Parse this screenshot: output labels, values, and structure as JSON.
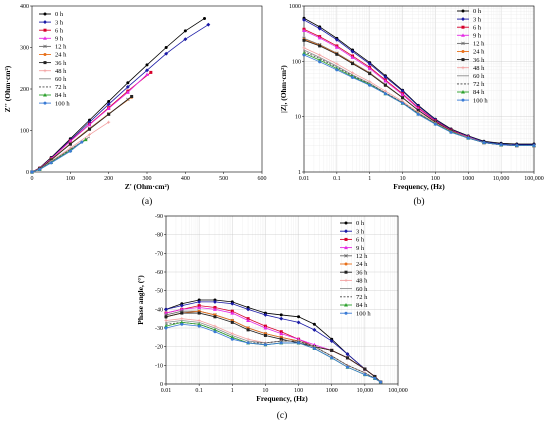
{
  "legend_labels": [
    "0 h",
    "3 h",
    "6 h",
    "9 h",
    "12 h",
    "24 h",
    "36 h",
    "48 h",
    "60 h",
    "72 h",
    "84 h",
    "100 h"
  ],
  "series_colors": [
    "#000000",
    "#1a1aa6",
    "#d6002a",
    "#e52ae5",
    "#6b6b6b",
    "#e8701a",
    "#222222",
    "#f2a0a0",
    "#8c8c8c",
    "#444444",
    "#2aa02a",
    "#3a7bd5"
  ],
  "chart_data": [
    {
      "type": "scatter",
      "panel_label": "(a)",
      "xlabel": "Z' (Ohm·cm²)",
      "ylabel": "Z'' (Ohm·cm²)",
      "xlim": [
        0,
        600
      ],
      "ylim": [
        0,
        400
      ],
      "xticks": [
        "0",
        "100",
        "200",
        "300",
        "400",
        "500",
        "600"
      ],
      "yticks": [
        "0",
        "100",
        "200",
        "300",
        "400"
      ],
      "series": [
        {
          "name": "0 h",
          "x": [
            0,
            20,
            50,
            100,
            150,
            200,
            250,
            300,
            350,
            400,
            450
          ],
          "y": [
            0,
            10,
            35,
            80,
            125,
            170,
            215,
            258,
            300,
            340,
            370
          ]
        },
        {
          "name": "3 h",
          "x": [
            0,
            20,
            50,
            100,
            150,
            200,
            250,
            300,
            350,
            400,
            460
          ],
          "y": [
            0,
            9,
            33,
            77,
            120,
            163,
            205,
            245,
            285,
            320,
            355
          ]
        },
        {
          "name": "6 h",
          "x": [
            0,
            20,
            50,
            100,
            150,
            200,
            250,
            310
          ],
          "y": [
            0,
            9,
            32,
            75,
            115,
            155,
            195,
            240
          ]
        },
        {
          "name": "9 h",
          "x": [
            0,
            20,
            50,
            100,
            150,
            200,
            250,
            300
          ],
          "y": [
            0,
            9,
            32,
            74,
            114,
            153,
            192,
            235
          ]
        },
        {
          "name": "12 h",
          "x": [
            0,
            20,
            50,
            100,
            150,
            200,
            250
          ],
          "y": [
            0,
            8,
            30,
            68,
            105,
            140,
            175
          ]
        },
        {
          "name": "24 h",
          "x": [
            0,
            20,
            50,
            100,
            150,
            200,
            260
          ],
          "y": [
            0,
            8,
            30,
            68,
            104,
            140,
            180
          ]
        },
        {
          "name": "36 h",
          "x": [
            0,
            20,
            50,
            100,
            150,
            200,
            260
          ],
          "y": [
            0,
            8,
            29,
            67,
            103,
            139,
            182
          ]
        },
        {
          "name": "48 h",
          "x": [
            0,
            20,
            50,
            100,
            150,
            200
          ],
          "y": [
            0,
            7,
            26,
            58,
            90,
            120
          ]
        },
        {
          "name": "60 h",
          "x": [
            0,
            20,
            50,
            100,
            150
          ],
          "y": [
            0,
            7,
            25,
            55,
            85
          ]
        },
        {
          "name": "72 h",
          "x": [
            0,
            20,
            50,
            100,
            150
          ],
          "y": [
            0,
            7,
            24,
            54,
            83
          ]
        },
        {
          "name": "84 h",
          "x": [
            0,
            20,
            50,
            100,
            140
          ],
          "y": [
            0,
            6,
            23,
            52,
            78
          ]
        },
        {
          "name": "100 h",
          "x": [
            0,
            20,
            50,
            100,
            130
          ],
          "y": [
            0,
            6,
            22,
            50,
            72
          ]
        }
      ]
    },
    {
      "type": "line",
      "panel_label": "(b)",
      "xlabel": "Frequency, (Hz)",
      "ylabel": "|Z|, (Ohm·cm²)",
      "xscale": "log",
      "yscale": "log",
      "xlim": [
        0.01,
        100000
      ],
      "ylim": [
        1,
        1000
      ],
      "xticks": [
        "0.01",
        "0.1",
        "1",
        "10",
        "100",
        "1000",
        "10,000",
        "100,000"
      ],
      "yticks": [
        "1",
        "10",
        "100",
        "1000"
      ],
      "x": [
        0.01,
        0.03,
        0.1,
        0.3,
        1,
        3,
        10,
        30,
        100,
        300,
        1000,
        3000,
        10000,
        30000,
        100000
      ],
      "series": [
        {
          "name": "0 h",
          "values": [
            600,
            420,
            260,
            160,
            95,
            55,
            30,
            16,
            9,
            6,
            4.5,
            3.6,
            3.3,
            3.2,
            3.2
          ]
        },
        {
          "name": "3 h",
          "values": [
            560,
            390,
            245,
            150,
            90,
            52,
            29,
            15.5,
            8.8,
            5.8,
            4.4,
            3.5,
            3.2,
            3.1,
            3.1
          ]
        },
        {
          "name": "6 h",
          "values": [
            380,
            280,
            190,
            125,
            78,
            46,
            26,
            14.5,
            8.4,
            5.7,
            4.3,
            3.4,
            3.1,
            3.0,
            3.0
          ]
        },
        {
          "name": "9 h",
          "values": [
            360,
            265,
            180,
            118,
            74,
            44,
            25,
            14,
            8.2,
            5.6,
            4.3,
            3.4,
            3.1,
            3.0,
            3.0
          ]
        },
        {
          "name": "12 h",
          "values": [
            260,
            200,
            140,
            95,
            62,
            38,
            22,
            13,
            8,
            5.5,
            4.2,
            3.4,
            3.1,
            3.0,
            3.0
          ]
        },
        {
          "name": "24 h",
          "values": [
            250,
            195,
            137,
            93,
            61,
            37,
            22,
            13,
            8,
            5.5,
            4.2,
            3.4,
            3.1,
            3.0,
            3.0
          ]
        },
        {
          "name": "36 h",
          "values": [
            240,
            190,
            134,
            91,
            60,
            37,
            22,
            13,
            8,
            5.5,
            4.2,
            3.4,
            3.1,
            3.0,
            3.0
          ]
        },
        {
          "name": "48 h",
          "values": [
            175,
            130,
            90,
            62,
            43,
            29,
            19,
            12,
            7.7,
            5.4,
            4.2,
            3.4,
            3.1,
            3.0,
            3.0
          ]
        },
        {
          "name": "60 h",
          "values": [
            160,
            118,
            82,
            57,
            40,
            27,
            18,
            11.5,
            7.5,
            5.3,
            4.1,
            3.4,
            3.1,
            3.0,
            3.0
          ]
        },
        {
          "name": "72 h",
          "values": [
            150,
            112,
            78,
            55,
            39,
            27,
            18,
            11.5,
            7.5,
            5.3,
            4.1,
            3.4,
            3.1,
            3.0,
            3.0
          ]
        },
        {
          "name": "84 h",
          "values": [
            140,
            105,
            74,
            53,
            38,
            26,
            17.5,
            11.2,
            7.4,
            5.3,
            4.1,
            3.4,
            3.1,
            3.0,
            3.0
          ]
        },
        {
          "name": "100 h",
          "values": [
            130,
            98,
            70,
            51,
            37,
            26,
            17.5,
            11,
            7.3,
            5.2,
            4.1,
            3.4,
            3.1,
            3.0,
            3.0
          ]
        }
      ]
    },
    {
      "type": "line",
      "panel_label": "(c)",
      "xlabel": "Frequency, (Hz)",
      "ylabel": "Phase angle, (°)",
      "xscale": "log",
      "xlim": [
        0.01,
        100000
      ],
      "ylim": [
        0,
        -90
      ],
      "xticks": [
        "0.01",
        "0.1",
        "1",
        "10",
        "100",
        "1000",
        "10,000",
        "100,000"
      ],
      "yticks": [
        "0",
        "-10",
        "-20",
        "-30",
        "-40",
        "-50",
        "-60",
        "-70",
        "-80",
        "-90"
      ],
      "x": [
        0.01,
        0.03,
        0.1,
        0.3,
        1,
        3,
        10,
        30,
        100,
        300,
        1000,
        3000,
        10000,
        20000,
        30000
      ],
      "series": [
        {
          "name": "0 h",
          "values": [
            -40,
            -43,
            -45,
            -45,
            -44,
            -41,
            -38,
            -37,
            -36,
            -32,
            -24,
            -16,
            -8,
            -4,
            -1
          ]
        },
        {
          "name": "3 h",
          "values": [
            -40,
            -42,
            -44,
            -44,
            -43,
            -40,
            -37,
            -35,
            -33,
            -29,
            -23,
            -16,
            -8,
            -4,
            -1
          ]
        },
        {
          "name": "6 h",
          "values": [
            -38,
            -40,
            -42,
            -41,
            -39,
            -35,
            -31,
            -28,
            -24,
            -20,
            -18,
            -14,
            -8,
            -4,
            -1
          ]
        },
        {
          "name": "9 h",
          "values": [
            -38,
            -40,
            -41,
            -40,
            -38,
            -34,
            -30,
            -27,
            -24,
            -21,
            -18,
            -14,
            -8,
            -4,
            -1
          ]
        },
        {
          "name": "12 h",
          "values": [
            -37,
            -39,
            -39,
            -37,
            -34,
            -30,
            -27,
            -25,
            -23,
            -20,
            -18,
            -14,
            -8,
            -4,
            -1
          ]
        },
        {
          "name": "24 h",
          "values": [
            -36,
            -38,
            -39,
            -37,
            -34,
            -30,
            -27,
            -25,
            -23,
            -20,
            -18,
            -14,
            -8,
            -4,
            -1
          ]
        },
        {
          "name": "36 h",
          "values": [
            -36,
            -38,
            -38,
            -36,
            -33,
            -29,
            -26,
            -24,
            -22,
            -20,
            -18,
            -14,
            -8,
            -4,
            -1
          ]
        },
        {
          "name": "48 h",
          "values": [
            -34,
            -35,
            -34,
            -31,
            -27,
            -24,
            -22,
            -23,
            -23,
            -20,
            -15,
            -10,
            -6,
            -3,
            -1
          ]
        },
        {
          "name": "60 h",
          "values": [
            -33,
            -34,
            -33,
            -30,
            -26,
            -23,
            -22,
            -23,
            -23,
            -20,
            -15,
            -10,
            -6,
            -3,
            -1
          ]
        },
        {
          "name": "72 h",
          "values": [
            -32,
            -33,
            -32,
            -29,
            -25,
            -22,
            -22,
            -23,
            -23,
            -20,
            -15,
            -10,
            -6,
            -3,
            -1
          ]
        },
        {
          "name": "84 h",
          "values": [
            -31,
            -33,
            -32,
            -29,
            -25,
            -22,
            -21,
            -22,
            -22,
            -19,
            -14,
            -9,
            -5,
            -3,
            -1
          ]
        },
        {
          "name": "100 h",
          "values": [
            -30,
            -32,
            -31,
            -28,
            -24,
            -22,
            -21,
            -22,
            -22,
            -19,
            -14,
            -9,
            -5,
            -3,
            -1
          ]
        }
      ]
    }
  ]
}
